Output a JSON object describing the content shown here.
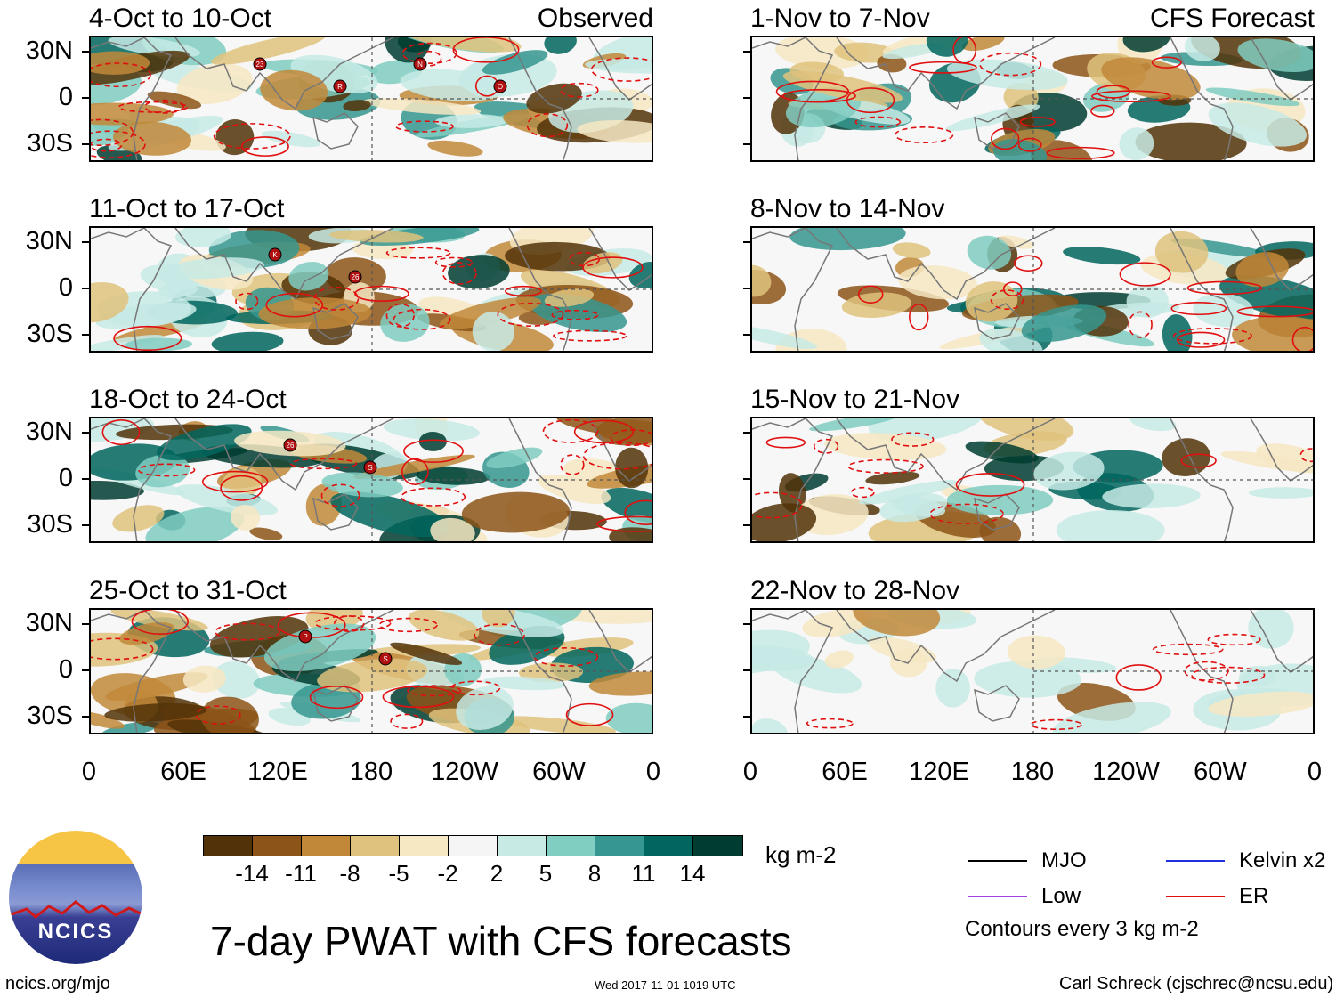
{
  "panels_left": [
    {
      "title": "4-Oct to 10-Oct",
      "label": "Observed"
    },
    {
      "title": "11-Oct to 17-Oct",
      "label": ""
    },
    {
      "title": "18-Oct to 24-Oct",
      "label": ""
    },
    {
      "title": "25-Oct to 31-Oct",
      "label": ""
    }
  ],
  "panels_right": [
    {
      "title": "1-Nov to 7-Nov",
      "label": "CFS Forecast"
    },
    {
      "title": "8-Nov to 14-Nov",
      "label": ""
    },
    {
      "title": "15-Nov to 21-Nov",
      "label": ""
    },
    {
      "title": "22-Nov to 28-Nov",
      "label": ""
    }
  ],
  "lat_labels": [
    "30N",
    "0",
    "30S"
  ],
  "lon_labels": [
    "0",
    "60E",
    "120E",
    "180",
    "120W",
    "60W",
    "0"
  ],
  "colorbar": {
    "labels": [
      "-14",
      "-11",
      "-8",
      "-5",
      "-2",
      "2",
      "5",
      "8",
      "11",
      "14"
    ],
    "colors": [
      "#523208",
      "#8c5418",
      "#c1883a",
      "#dfc27d",
      "#f6e8c3",
      "#f5f5f5",
      "#c7eae5",
      "#80cdc1",
      "#35978f",
      "#01665e",
      "#003c30"
    ],
    "units": "kg m-2"
  },
  "legend": {
    "mjo": "MJO",
    "kelvin": "Kelvin x2",
    "low": "Low",
    "er": "ER",
    "mjo_color": "#000000",
    "kelvin_color": "#1f2de0",
    "low_color": "#a040e0",
    "er_color": "#e01010",
    "contours": "Contours every 3 kg m-2"
  },
  "title": "7-day PWAT with CFS forecasts",
  "logo_text": "NCICS",
  "footer": {
    "url": "ncics.org/mjo",
    "timestamp": "Wed 2017-11-01 1019 UTC",
    "author": "Carl Schreck (cjschrec@ncsu.edu)"
  },
  "storm_markers": [
    {
      "panel": 0,
      "labels": [
        "23",
        "R",
        "N",
        "O"
      ]
    },
    {
      "panel": 1,
      "labels": [
        "K",
        "26"
      ]
    },
    {
      "panel": 2,
      "labels": [
        "26",
        "S"
      ]
    },
    {
      "panel": 3,
      "labels": [
        "P",
        "S"
      ]
    }
  ]
}
